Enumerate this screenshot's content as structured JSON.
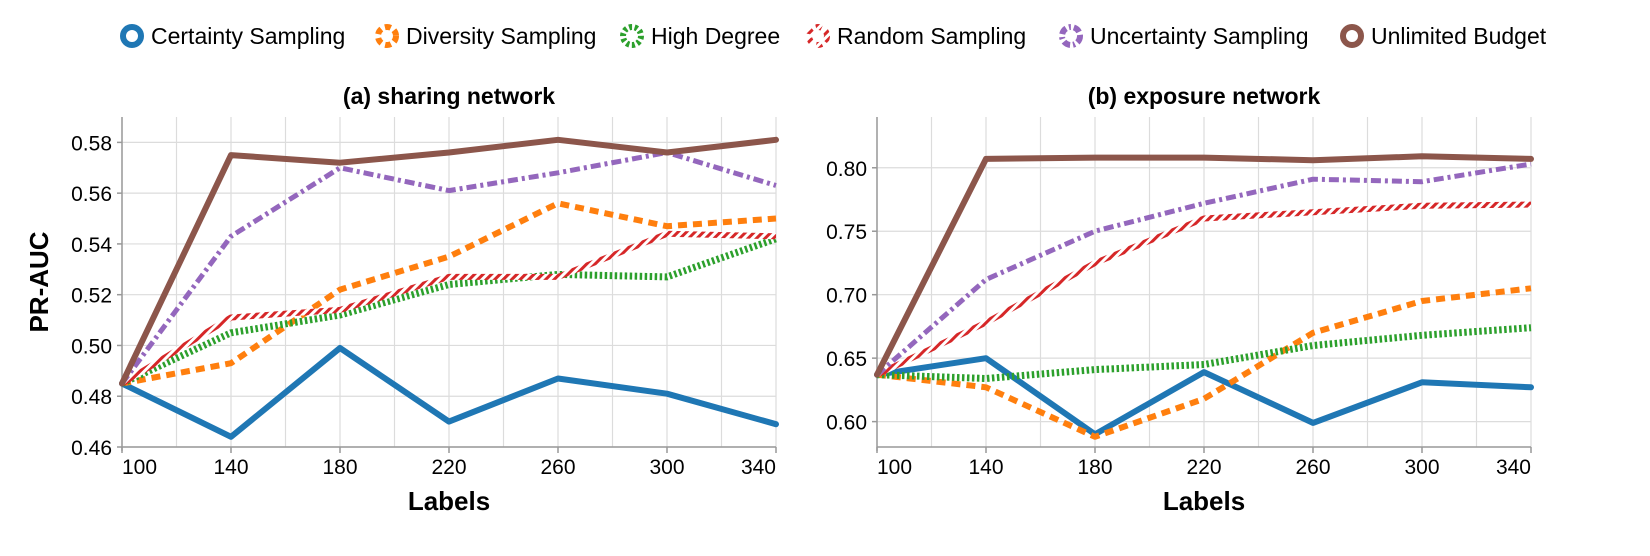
{
  "legend": [
    {
      "label": "Certainty Sampling",
      "color": "#1f77b4",
      "dash": "solid"
    },
    {
      "label": "Diversity Sampling",
      "color": "#ff7f0e",
      "dash": "dash"
    },
    {
      "label": "High Degree",
      "color": "#2ca02c",
      "dash": "dot"
    },
    {
      "label": "Random Sampling",
      "color": "#d62728",
      "dash": "hatch"
    },
    {
      "label": "Uncertainty Sampling",
      "color": "#9467bd",
      "dash": "dashdot"
    },
    {
      "label": "Unlimited Budget",
      "color": "#8c564b",
      "dash": "solid"
    }
  ],
  "chart_data": [
    {
      "type": "line",
      "title": "(a) sharing network",
      "xlabel": "Labels",
      "ylabel": "PR-AUC",
      "x": [
        100,
        140,
        180,
        220,
        260,
        300,
        340
      ],
      "xticks": [
        "100",
        "140",
        "180",
        "220",
        "260",
        "300",
        "340"
      ],
      "xlim": [
        100,
        340
      ],
      "ylim": [
        0.46,
        0.59
      ],
      "yticks": [
        "0.46",
        "0.48",
        "0.50",
        "0.52",
        "0.54",
        "0.56",
        "0.58"
      ],
      "grid": true,
      "series": [
        {
          "name": "Certainty Sampling",
          "values": [
            0.485,
            0.464,
            0.499,
            0.47,
            0.487,
            0.481,
            0.469
          ]
        },
        {
          "name": "Diversity Sampling",
          "values": [
            0.485,
            0.493,
            0.522,
            0.535,
            0.556,
            0.547,
            0.55
          ]
        },
        {
          "name": "High Degree",
          "values": [
            0.485,
            0.505,
            0.512,
            0.524,
            0.528,
            0.527,
            0.542
          ]
        },
        {
          "name": "Random Sampling",
          "values": [
            0.485,
            0.511,
            0.514,
            0.527,
            0.527,
            0.544,
            0.543
          ]
        },
        {
          "name": "Uncertainty Sampling",
          "values": [
            0.485,
            0.543,
            0.57,
            0.561,
            0.568,
            0.576,
            0.563
          ]
        },
        {
          "name": "Unlimited Budget",
          "values": [
            0.485,
            0.575,
            0.572,
            0.576,
            0.581,
            0.576,
            0.581
          ]
        }
      ]
    },
    {
      "type": "line",
      "title": "(b) exposure network",
      "xlabel": "Labels",
      "ylabel": "",
      "x": [
        100,
        140,
        180,
        220,
        260,
        300,
        340
      ],
      "xticks": [
        "100",
        "140",
        "180",
        "220",
        "260",
        "300",
        "340"
      ],
      "xlim": [
        100,
        340
      ],
      "ylim": [
        0.58,
        0.84
      ],
      "yticks": [
        "0.60",
        "0.65",
        "0.70",
        "0.75",
        "0.80"
      ],
      "grid": true,
      "series": [
        {
          "name": "Certainty Sampling",
          "values": [
            0.637,
            0.65,
            0.59,
            0.639,
            0.599,
            0.631,
            0.627
          ]
        },
        {
          "name": "Diversity Sampling",
          "values": [
            0.637,
            0.627,
            0.588,
            0.618,
            0.67,
            0.695,
            0.705
          ]
        },
        {
          "name": "High Degree",
          "values": [
            0.637,
            0.634,
            0.641,
            0.645,
            0.66,
            0.668,
            0.674
          ]
        },
        {
          "name": "Random Sampling",
          "values": [
            0.637,
            0.678,
            0.725,
            0.76,
            0.765,
            0.77,
            0.771
          ]
        },
        {
          "name": "Uncertainty Sampling",
          "values": [
            0.637,
            0.712,
            0.75,
            0.772,
            0.791,
            0.789,
            0.803
          ]
        },
        {
          "name": "Unlimited Budget",
          "values": [
            0.637,
            0.807,
            0.808,
            0.808,
            0.806,
            0.809,
            0.807
          ]
        }
      ]
    }
  ]
}
